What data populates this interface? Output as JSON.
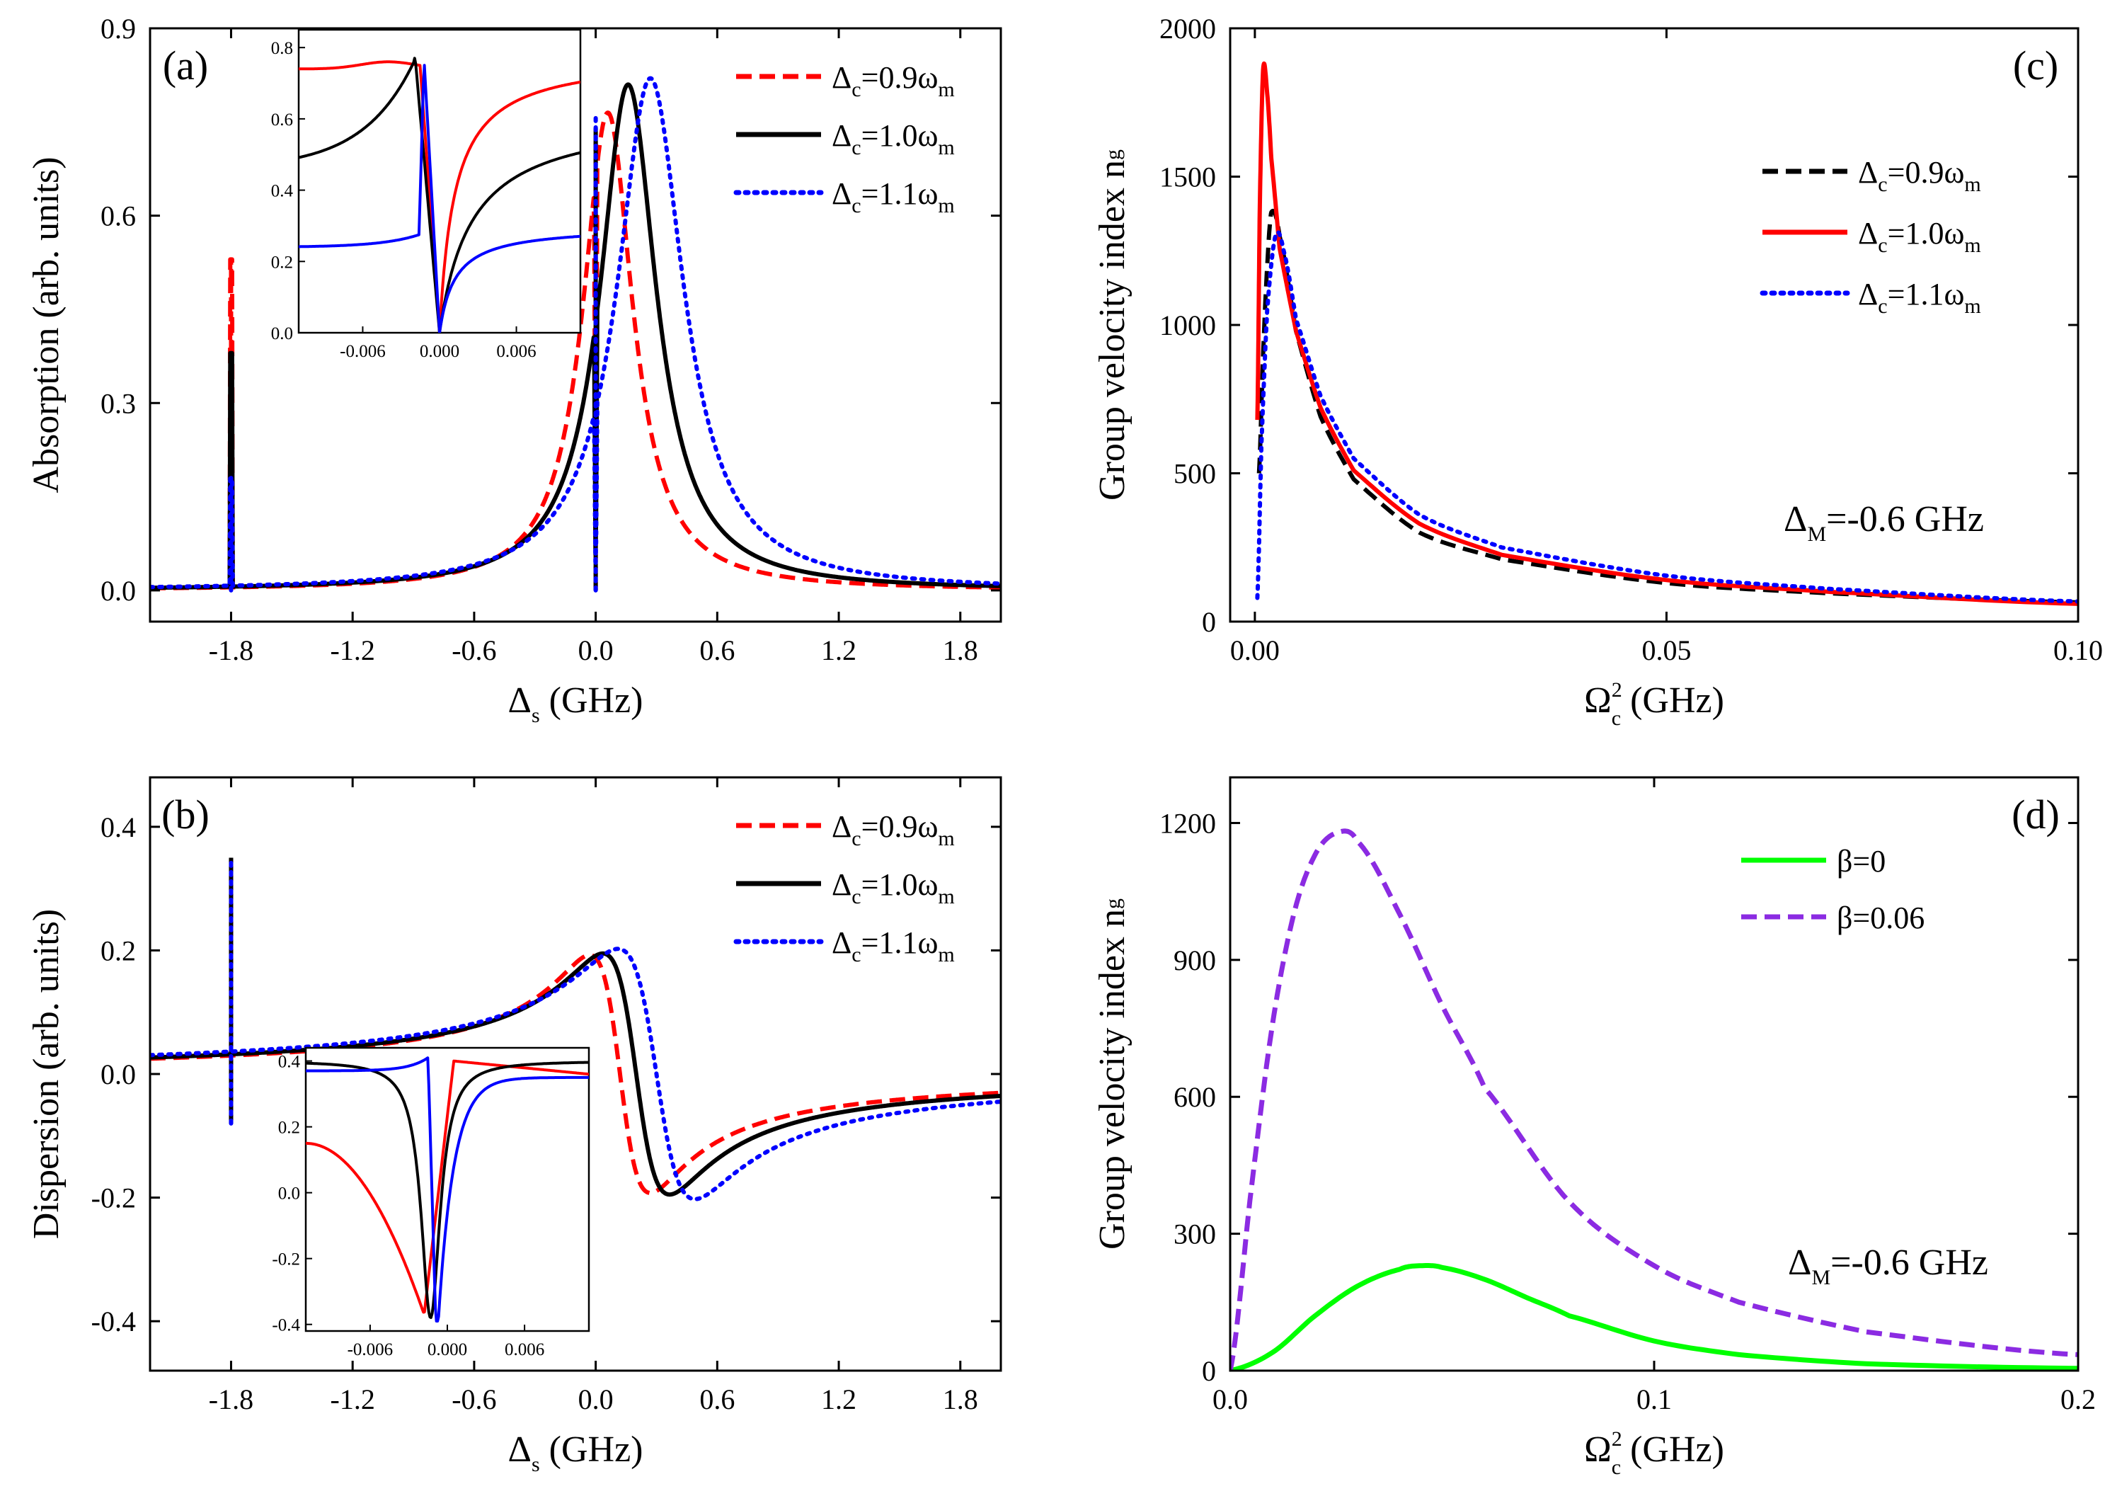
{
  "figure": {
    "description_panels": [
      "a",
      "b",
      "c",
      "d"
    ]
  },
  "chart_data": [
    {
      "id": "a",
      "type": "line",
      "panel_label": "(a)",
      "xlabel_main": "Δ",
      "xlabel_sub": "s",
      "xlabel_unit": " (GHz)",
      "ylabel": "Absorption (arb. units)",
      "xlim": [
        -2.2,
        2.0
      ],
      "ylim": [
        -0.05,
        0.9
      ],
      "xticks": [
        -1.8,
        -1.2,
        -0.6,
        0.0,
        0.6,
        1.2,
        1.8
      ],
      "xtick_labels": [
        "-1.8",
        "-1.2",
        "-0.6",
        "0.0",
        "0.6",
        "1.2",
        "1.8"
      ],
      "yticks": [
        0.0,
        0.3,
        0.6,
        0.9
      ],
      "ytick_labels": [
        "0.0",
        "0.3",
        "0.6",
        "0.9"
      ],
      "legend_position": "top-right",
      "series": [
        {
          "name_main": "Δ",
          "name_sub": "c",
          "name_rest": "=0.9ω",
          "name_sub2": "m",
          "color": "#ff0000",
          "style": "dashed",
          "peak_x": 0.06,
          "peak_y": 0.765,
          "width": 0.3,
          "spike_x": -1.8,
          "spike_y": 0.53
        },
        {
          "name_main": "Δ",
          "name_sub": "c",
          "name_rest": "=1.0ω",
          "name_sub2": "m",
          "color": "#000000",
          "style": "solid",
          "peak_x": 0.16,
          "peak_y": 0.81,
          "width": 0.34,
          "spike_x": -1.8,
          "spike_y": 0.38
        },
        {
          "name_main": "Δ",
          "name_sub": "c",
          "name_rest": "=1.1ω",
          "name_sub2": "m",
          "color": "#0000ff",
          "style": "dotted",
          "peak_x": 0.27,
          "peak_y": 0.82,
          "width": 0.4,
          "spike_x": -1.8,
          "spike_y": 0.18
        }
      ],
      "inset": {
        "xlim": [
          -0.011,
          0.011
        ],
        "ylim": [
          0.0,
          0.85
        ],
        "xticks": [
          -0.006,
          0.0,
          0.006
        ],
        "xtick_labels": [
          "-0.006",
          "0.000",
          "0.006"
        ],
        "yticks": [
          0.0,
          0.2,
          0.4,
          0.6,
          0.8
        ],
        "ytick_labels": [
          "0.0",
          "0.2",
          "0.4",
          "0.6",
          "0.8"
        ]
      }
    },
    {
      "id": "b",
      "type": "line",
      "panel_label": "(b)",
      "xlabel_main": "Δ",
      "xlabel_sub": "s",
      "xlabel_unit": " (GHz)",
      "ylabel": "Dispersion (arb. units)",
      "xlim": [
        -2.2,
        2.0
      ],
      "ylim": [
        -0.48,
        0.48
      ],
      "xticks": [
        -1.8,
        -1.2,
        -0.6,
        0.0,
        0.6,
        1.2,
        1.8
      ],
      "xtick_labels": [
        "-1.8",
        "-1.2",
        "-0.6",
        "0.0",
        "0.6",
        "1.2",
        "1.8"
      ],
      "yticks": [
        -0.4,
        -0.2,
        0.0,
        0.2,
        0.4
      ],
      "ytick_labels": [
        "-0.4",
        "-0.2",
        "0.0",
        "0.2",
        "0.4"
      ],
      "legend_position": "top-right",
      "series": [
        {
          "name_main": "Δ",
          "name_sub": "c",
          "name_rest": "=0.9ω",
          "name_sub2": "m",
          "color": "#ff0000",
          "style": "dashed",
          "center": 0.12,
          "amp": 0.385,
          "width": 0.3
        },
        {
          "name_main": "Δ",
          "name_sub": "c",
          "name_rest": "=1.0ω",
          "name_sub2": "m",
          "color": "#000000",
          "style": "solid",
          "center": 0.2,
          "amp": 0.39,
          "width": 0.33
        },
        {
          "name_main": "Δ",
          "name_sub": "c",
          "name_rest": "=1.1ω",
          "name_sub2": "m",
          "color": "#0000ff",
          "style": "dotted",
          "center": 0.3,
          "amp": 0.405,
          "width": 0.38
        }
      ],
      "inset": {
        "xlim": [
          -0.011,
          0.011
        ],
        "ylim": [
          -0.42,
          0.44
        ],
        "xticks": [
          -0.006,
          0.0,
          0.006
        ],
        "xtick_labels": [
          "-0.006",
          "0.000",
          "0.006"
        ],
        "yticks": [
          -0.4,
          -0.2,
          0.0,
          0.2,
          0.4
        ],
        "ytick_labels": [
          "-0.4",
          "-0.2",
          "0.0",
          "0.2",
          "0.4"
        ]
      }
    },
    {
      "id": "c",
      "type": "line",
      "panel_label": "(c)",
      "xlabel_main": "Ω",
      "xlabel_sup": "2",
      "xlabel_sub": "c",
      "xlabel_unit": " (GHz)",
      "ylabel": "Group velocity index n",
      "ylabel_sub": "g",
      "xlim": [
        -0.003,
        0.1
      ],
      "ylim": [
        0,
        2000
      ],
      "xticks": [
        0.0,
        0.05,
        0.1
      ],
      "xtick_labels": [
        "0.00",
        "0.05",
        "0.10"
      ],
      "yticks": [
        0,
        500,
        1000,
        1500,
        2000
      ],
      "ytick_labels": [
        "0",
        "500",
        "1000",
        "1500",
        "2000"
      ],
      "annotation_main": "Δ",
      "annotation_sub": "M",
      "annotation_rest": "=-0.6 GHz",
      "legend_position": "top-right",
      "series": [
        {
          "name_main": "Δ",
          "name_sub": "c",
          "name_rest": "=0.9ω",
          "name_sub2": "m",
          "color": "#000000",
          "style": "dashed",
          "x": [
            0.0005,
            0.001,
            0.0015,
            0.002,
            0.003,
            0.005,
            0.008,
            0.012,
            0.02,
            0.03,
            0.05,
            0.07,
            0.1
          ],
          "y": [
            500,
            900,
            1200,
            1380,
            1300,
            980,
            690,
            480,
            300,
            210,
            130,
            95,
            65
          ]
        },
        {
          "name_main": "Δ",
          "name_sub": "c",
          "name_rest": "=1.0ω",
          "name_sub2": "m",
          "color": "#ff0000",
          "style": "solid",
          "x": [
            0.0003,
            0.0006,
            0.001,
            0.0015,
            0.002,
            0.003,
            0.005,
            0.008,
            0.012,
            0.02,
            0.03,
            0.05,
            0.07,
            0.1
          ],
          "y": [
            680,
            1400,
            1860,
            1780,
            1560,
            1260,
            980,
            720,
            510,
            330,
            225,
            140,
            100,
            60
          ]
        },
        {
          "name_main": "Δ",
          "name_sub": "c",
          "name_rest": "=1.1ω",
          "name_sub2": "m",
          "color": "#0000ff",
          "style": "dotted",
          "x": [
            0.0003,
            0.0008,
            0.0015,
            0.0025,
            0.0035,
            0.005,
            0.008,
            0.012,
            0.02,
            0.03,
            0.05,
            0.07,
            0.1
          ],
          "y": [
            80,
            600,
            1050,
            1300,
            1250,
            1020,
            760,
            550,
            360,
            250,
            155,
            110,
            68
          ]
        }
      ]
    },
    {
      "id": "d",
      "type": "line",
      "panel_label": "(d)",
      "xlabel_main": "Ω",
      "xlabel_sup": "2",
      "xlabel_sub": "c",
      "xlabel_unit": " (GHz)",
      "ylabel": "Group velocity index n",
      "ylabel_sub": "g",
      "xlim": [
        0,
        0.2
      ],
      "ylim": [
        0,
        1300
      ],
      "xticks": [
        0.0,
        0.1,
        0.2
      ],
      "xtick_labels": [
        "0.0",
        "0.1",
        "0.2"
      ],
      "yticks": [
        0,
        300,
        600,
        900,
        1200
      ],
      "ytick_labels": [
        "0",
        "300",
        "600",
        "900",
        "1200"
      ],
      "annotation_main": "Δ",
      "annotation_sub": "M",
      "annotation_rest": "=-0.6 GHz",
      "legend_position": "top-right",
      "series": [
        {
          "name": "β=0",
          "color": "#00ff00",
          "style": "solid",
          "x": [
            0,
            0.01,
            0.02,
            0.03,
            0.04,
            0.045,
            0.05,
            0.06,
            0.07,
            0.08,
            0.1,
            0.12,
            0.15,
            0.2
          ],
          "y": [
            0,
            40,
            120,
            185,
            222,
            230,
            226,
            200,
            160,
            120,
            65,
            35,
            15,
            5
          ]
        },
        {
          "name": "β=0.06",
          "color": "#8b2be2",
          "style": "dashed",
          "x": [
            0,
            0.005,
            0.01,
            0.015,
            0.02,
            0.025,
            0.03,
            0.04,
            0.05,
            0.06,
            0.08,
            0.1,
            0.12,
            0.15,
            0.2
          ],
          "y": [
            0,
            400,
            760,
            1000,
            1130,
            1178,
            1160,
            1000,
            800,
            620,
            370,
            230,
            150,
            85,
            35
          ]
        }
      ]
    }
  ]
}
